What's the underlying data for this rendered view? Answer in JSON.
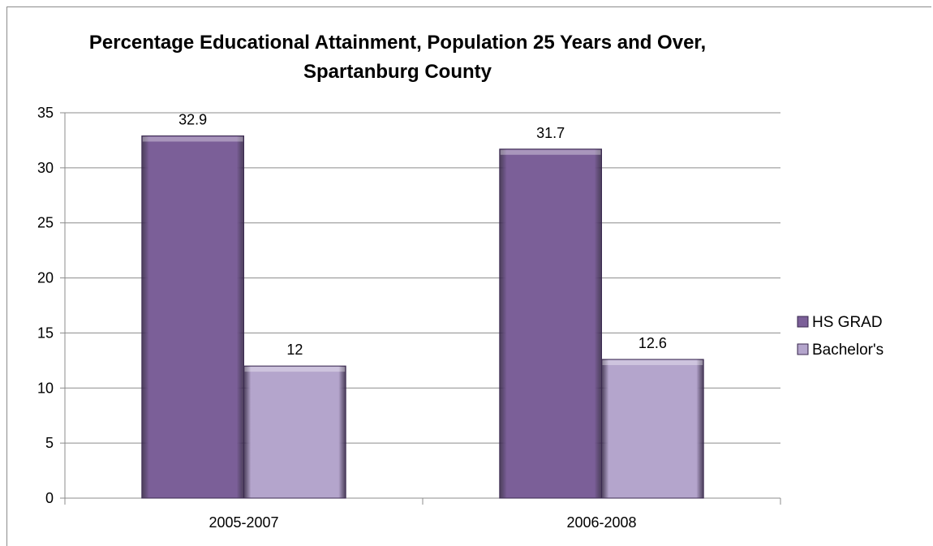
{
  "chart_data": {
    "type": "bar",
    "title_lines": [
      "Percentage Educational Attainment, Population 25 Years and Over,",
      "Spartanburg County"
    ],
    "categories": [
      "2005-2007",
      "2006-2008"
    ],
    "series": [
      {
        "name": "HS GRAD",
        "values": [
          32.9,
          31.7
        ],
        "color": "#7b5f98"
      },
      {
        "name": "Bachelor's",
        "values": [
          12,
          12.6
        ],
        "color": "#b4a5cc"
      }
    ],
    "data_labels": [
      [
        "32.9",
        "31.7"
      ],
      [
        "12",
        "12.6"
      ]
    ],
    "xlabel": "",
    "ylabel": "",
    "ylim": [
      0,
      35
    ],
    "yticks": [
      0,
      5,
      10,
      15,
      20,
      25,
      30,
      35
    ],
    "grid": true,
    "legend": "right"
  }
}
